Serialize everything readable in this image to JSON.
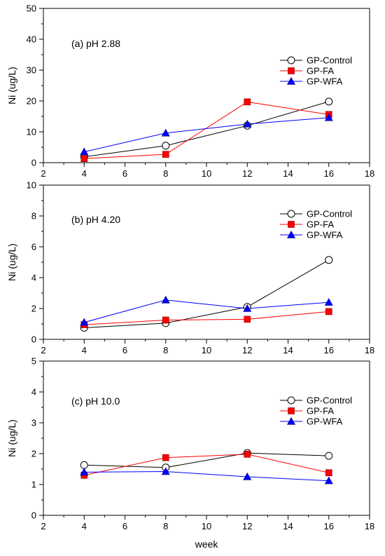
{
  "figure": {
    "xlabel": "week"
  },
  "chart_data": [
    {
      "type": "line",
      "annotation": "(a) pH 2.88",
      "ylabel": "Ni (ug/L)",
      "xlabel": "",
      "xlim": [
        2,
        18
      ],
      "ylim": [
        0,
        50
      ],
      "xticks": [
        "2",
        "4",
        "6",
        "8",
        "10",
        "12",
        "14",
        "16",
        "18"
      ],
      "yticks": [
        "0",
        "10",
        "20",
        "30",
        "40",
        "50"
      ],
      "x": [
        4,
        8,
        12,
        16
      ],
      "grid": false,
      "legend_position": "top-right",
      "series": [
        {
          "name": "GP-Control",
          "values": [
            1.9,
            5.5,
            12.0,
            19.8
          ],
          "color": "#000000",
          "marker": "circle-open"
        },
        {
          "name": "GP-FA",
          "values": [
            1.3,
            2.7,
            19.7,
            15.6
          ],
          "color": "#ff0000",
          "marker": "square"
        },
        {
          "name": "GP-WFA",
          "values": [
            3.5,
            9.6,
            12.5,
            14.6
          ],
          "color": "#0000ff",
          "marker": "triangle"
        }
      ]
    },
    {
      "type": "line",
      "annotation": "(b) pH 4.20",
      "ylabel": "Ni (ug/L)",
      "xlabel": "",
      "xlim": [
        2,
        18
      ],
      "ylim": [
        0,
        10
      ],
      "xticks": [
        "2",
        "4",
        "6",
        "8",
        "10",
        "12",
        "14",
        "16",
        "18"
      ],
      "yticks": [
        "0",
        "2",
        "4",
        "6",
        "8",
        "10"
      ],
      "x": [
        4,
        8,
        12,
        16
      ],
      "grid": false,
      "legend_position": "top-right",
      "series": [
        {
          "name": "GP-Control",
          "values": [
            0.75,
            1.05,
            2.1,
            5.15
          ],
          "color": "#000000",
          "marker": "circle-open"
        },
        {
          "name": "GP-FA",
          "values": [
            0.95,
            1.25,
            1.3,
            1.8
          ],
          "color": "#ff0000",
          "marker": "square"
        },
        {
          "name": "GP-WFA",
          "values": [
            1.1,
            2.55,
            2.0,
            2.4
          ],
          "color": "#0000ff",
          "marker": "triangle"
        }
      ]
    },
    {
      "type": "line",
      "annotation": "(c) pH 10.0",
      "ylabel": "Ni (ug/L)",
      "xlabel": "week",
      "xlim": [
        2,
        18
      ],
      "ylim": [
        0,
        5
      ],
      "xticks": [
        "2",
        "4",
        "6",
        "8",
        "10",
        "12",
        "14",
        "16",
        "18"
      ],
      "yticks": [
        "0",
        "1",
        "2",
        "3",
        "4",
        "5"
      ],
      "x": [
        4,
        8,
        12,
        16
      ],
      "grid": false,
      "legend_position": "top-right",
      "series": [
        {
          "name": "GP-Control",
          "values": [
            1.63,
            1.55,
            2.02,
            1.93
          ],
          "color": "#000000",
          "marker": "circle-open"
        },
        {
          "name": "GP-FA",
          "values": [
            1.3,
            1.87,
            1.98,
            1.38
          ],
          "color": "#ff0000",
          "marker": "square"
        },
        {
          "name": "GP-WFA",
          "values": [
            1.4,
            1.42,
            1.25,
            1.12
          ],
          "color": "#0000ff",
          "marker": "triangle"
        }
      ]
    }
  ]
}
